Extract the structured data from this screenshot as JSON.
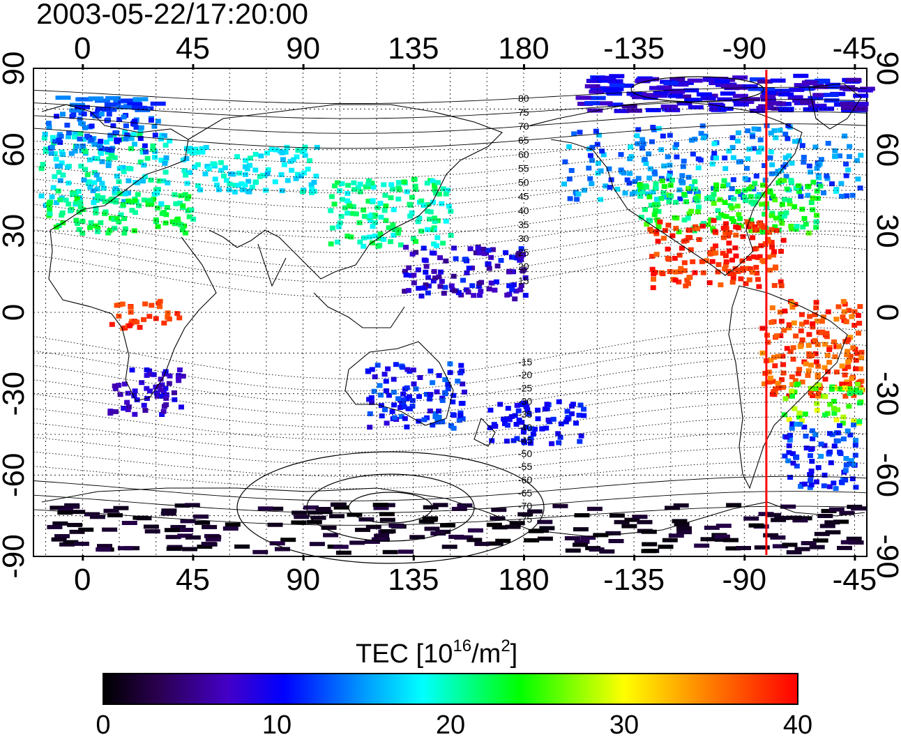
{
  "title": "2003-05-22/17:20:00",
  "colorbar": {
    "label": "TEC  [10",
    "label_sup": "16",
    "label_mid": "/m",
    "label_sup2": "2",
    "label_end": "]",
    "min": 0,
    "max": 40,
    "ticks": [
      "0",
      "10",
      "20",
      "30",
      "40"
    ]
  },
  "chart_data": {
    "type": "heatmap",
    "projection": "equirectangular",
    "lon_range": [
      -20,
      320
    ],
    "lat_range": [
      -90,
      90
    ],
    "x_ticks": [
      "0",
      "45",
      "90",
      "135",
      "180",
      "-135",
      "-90",
      "-45"
    ],
    "x_tick_values": [
      0,
      45,
      90,
      135,
      180,
      225,
      270,
      315
    ],
    "y_ticks": [
      "90",
      "60",
      "30",
      "0",
      "-30",
      "-60",
      "-90"
    ],
    "y_tick_values": [
      90,
      60,
      30,
      0,
      -30,
      -60,
      -90
    ],
    "grid": true,
    "terminator_lon": 279,
    "magnetic_latitude_labels": [
      "80",
      "75",
      "70",
      "65",
      "60",
      "55",
      "50",
      "45",
      "40",
      "35",
      "30",
      "25",
      "20",
      "15",
      "-15",
      "-20",
      "-25",
      "-30",
      "-35",
      "-40",
      "-45",
      "-50",
      "-55",
      "-60",
      "-65",
      "-70",
      "-75"
    ],
    "colors": {
      "terminator": "#ff0000",
      "contour": "#000000",
      "coast": "#000000"
    },
    "tec_regions": [
      {
        "lon": [
          -18,
          35
        ],
        "lat": [
          40,
          68
        ],
        "tec": [
          15,
          22
        ]
      },
      {
        "lon": [
          -15,
          45
        ],
        "lat": [
          30,
          45
        ],
        "tec": [
          20,
          24
        ]
      },
      {
        "lon": [
          40,
          95
        ],
        "lat": [
          45,
          62
        ],
        "tec": [
          16,
          20
        ]
      },
      {
        "lon": [
          100,
          150
        ],
        "lat": [
          25,
          50
        ],
        "tec": [
          18,
          23
        ]
      },
      {
        "lon": [
          -15,
          30
        ],
        "lat": [
          60,
          80
        ],
        "tec": [
          10,
          15
        ]
      },
      {
        "lon": [
          195,
          330
        ],
        "lat": [
          42,
          70
        ],
        "tec": [
          11,
          18
        ]
      },
      {
        "lon": [
          225,
          300
        ],
        "lat": [
          30,
          50
        ],
        "tec": [
          20,
          26
        ]
      },
      {
        "lon": [
          230,
          285
        ],
        "lat": [
          10,
          35
        ],
        "tec": [
          36,
          40
        ]
      },
      {
        "lon": [
          275,
          330
        ],
        "lat": [
          -30,
          5
        ],
        "tec": [
          34,
          40
        ]
      },
      {
        "lon": [
          285,
          320
        ],
        "lat": [
          -40,
          -25
        ],
        "tec": [
          22,
          30
        ]
      },
      {
        "lon": [
          285,
          315
        ],
        "lat": [
          -65,
          -40
        ],
        "tec": [
          9,
          15
        ]
      },
      {
        "lon": [
          165,
          205
        ],
        "lat": [
          -48,
          -32
        ],
        "tec": [
          9,
          12
        ]
      },
      {
        "lon": [
          115,
          155
        ],
        "lat": [
          -42,
          -18
        ],
        "tec": [
          8,
          14
        ]
      },
      {
        "lon": [
          10,
          40
        ],
        "lat": [
          -38,
          -20
        ],
        "tec": [
          6,
          10
        ]
      },
      {
        "lon": [
          130,
          180
        ],
        "lat": [
          5,
          25
        ],
        "tec": [
          5,
          12
        ]
      },
      {
        "lon": [
          -15,
          330
        ],
        "lat": [
          -90,
          -70
        ],
        "tec": [
          0,
          3
        ]
      },
      {
        "lon": [
          200,
          320
        ],
        "lat": [
          75,
          88
        ],
        "tec": [
          6,
          12
        ]
      },
      {
        "lon": [
          10,
          40
        ],
        "lat": [
          -5,
          5
        ],
        "tec": [
          36,
          40
        ]
      }
    ]
  }
}
